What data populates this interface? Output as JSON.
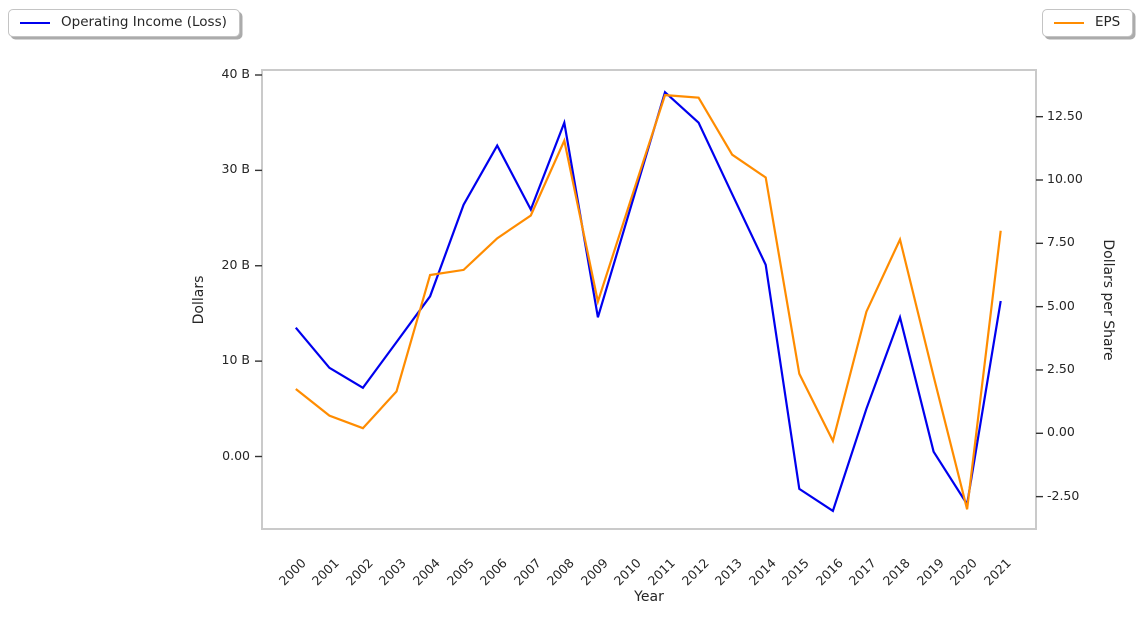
{
  "legend_left": {
    "label": "Operating Income (Loss)"
  },
  "legend_right": {
    "label": "EPS"
  },
  "chart_data": {
    "type": "line",
    "title": "",
    "xlabel": "Year",
    "x": [
      2000,
      2001,
      2002,
      2003,
      2004,
      2005,
      2006,
      2007,
      2008,
      2009,
      2010,
      2011,
      2012,
      2013,
      2014,
      2015,
      2016,
      2017,
      2018,
      2019,
      2020,
      2021
    ],
    "left_axis": {
      "label": "Dollars",
      "units": "billions of dollars",
      "range": [
        -8,
        41
      ],
      "ticks": [
        {
          "value": 0,
          "label": "0.00"
        },
        {
          "value": 10,
          "label": "10 B"
        },
        {
          "value": 20,
          "label": "20 B"
        },
        {
          "value": 30,
          "label": "30 B"
        },
        {
          "value": 40,
          "label": "40 B"
        }
      ]
    },
    "right_axis": {
      "label": "Dollars per Share",
      "range": [
        -3.6,
        14.3
      ],
      "ticks": [
        {
          "value": -2.5,
          "label": "-2.50"
        },
        {
          "value": 0,
          "label": "0.00"
        },
        {
          "value": 2.5,
          "label": "2.50"
        },
        {
          "value": 5,
          "label": "5.00"
        },
        {
          "value": 7.5,
          "label": "7.50"
        },
        {
          "value": 10,
          "label": "10.00"
        },
        {
          "value": 12.5,
          "label": "12.50"
        }
      ]
    },
    "grid": false,
    "legend_position": "two boxes above axes: left and right",
    "series": [
      {
        "name": "Operating Income (Loss)",
        "axis": "left",
        "color": "#0000ee",
        "values": [
          13.5,
          9.3,
          7.2,
          12.0,
          16.8,
          26.4,
          32.6,
          25.9,
          35.0,
          14.6,
          26.4,
          38.2,
          35.0,
          27.5,
          20.1,
          -3.4,
          -5.7,
          5.0,
          14.6,
          0.5,
          -5.0,
          16.3
        ]
      },
      {
        "name": "EPS",
        "axis": "right",
        "color": "#ff8c00",
        "values": [
          1.75,
          0.7,
          0.2,
          1.65,
          6.25,
          6.45,
          7.7,
          8.6,
          11.55,
          5.2,
          9.3,
          13.35,
          13.25,
          11.0,
          10.1,
          2.35,
          -0.3,
          4.8,
          7.65,
          2.25,
          -3.0,
          8.0
        ]
      }
    ],
    "frame_color": "#cacaca",
    "tick_mark_color": "#333333"
  }
}
